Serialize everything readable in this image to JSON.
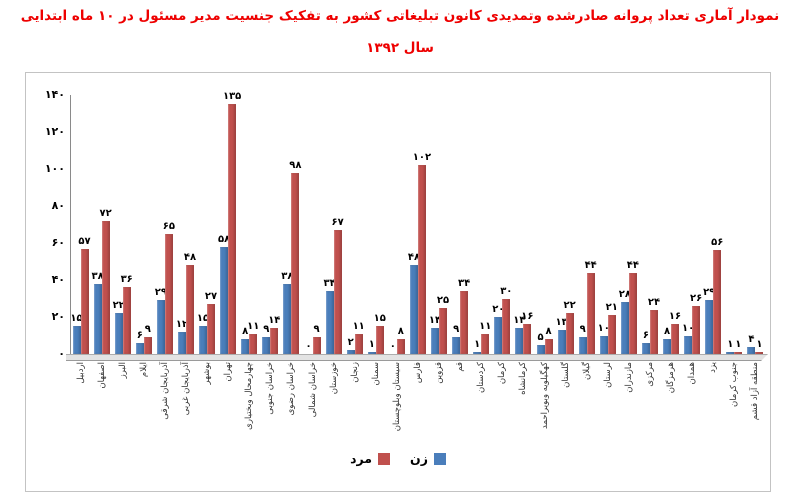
{
  "title": {
    "line1": "نمودار آماری تعداد پروانه صادرشده وتمدیدی کانون تبلیغاتی کشور به تفکیک جنسیت مدیر مسئول  در ۱۰ ماه ابتدایی",
    "line2": "سال ۱۳۹۲",
    "color": "#ee0000"
  },
  "chart_data": {
    "type": "bar",
    "direction": "rtl-labels",
    "title": "نمودار آماری تعداد پروانه صادرشده وتمدیدی کانون تبلیغاتی کشور به تفکیک جنسیت مدیر مسئول در ۱۰ ماه ابتدایی سال ۱۳۹۲",
    "categories": [
      "اردبیل",
      "اصفهان",
      "البرز",
      "ایلام",
      "آذربایجان شرقی",
      "آذربایجان غربی",
      "بوشهر",
      "تهران",
      "چهارمحال وبختیاری",
      "خراسان جنوبی",
      "خراسان رضوی",
      "خراسان شمالی",
      "خوزستان",
      "زنجان",
      "سمنان",
      "سیستان وبلوچستان",
      "فارس",
      "قزوین",
      "قم",
      "کردستان",
      "کرمان",
      "کرمانشاه",
      "کهگیلویه وبویراحمد",
      "گلستان",
      "گیلان",
      "لرستان",
      "مازندران",
      "مرکزی",
      "هرمزگان",
      "همدان",
      "یزد",
      "جنوب کرمان",
      "منطقه آزاد قشم"
    ],
    "series": [
      {
        "name": "زن",
        "color": "#4a7ebb",
        "values": [
          15,
          38,
          22,
          6,
          29,
          12,
          15,
          58,
          8,
          9,
          38,
          0,
          34,
          2,
          1,
          0,
          48,
          14,
          9,
          1,
          20,
          14,
          5,
          13,
          9,
          10,
          28,
          6,
          8,
          10,
          29,
          1,
          4
        ]
      },
      {
        "name": "مرد",
        "color": "#c0504d",
        "values": [
          57,
          72,
          36,
          9,
          65,
          48,
          27,
          135,
          11,
          14,
          98,
          9,
          67,
          11,
          15,
          8,
          102,
          25,
          34,
          11,
          30,
          16,
          8,
          22,
          44,
          21,
          44,
          24,
          16,
          26,
          56,
          1,
          1
        ]
      }
    ],
    "ylim": [
      0,
      140
    ],
    "ytick_step": 20,
    "yticks": [
      0,
      20,
      40,
      60,
      80,
      100,
      120,
      140
    ],
    "grid": false,
    "legend_position": "bottom",
    "number_locale": "fa",
    "data_labels": true
  }
}
